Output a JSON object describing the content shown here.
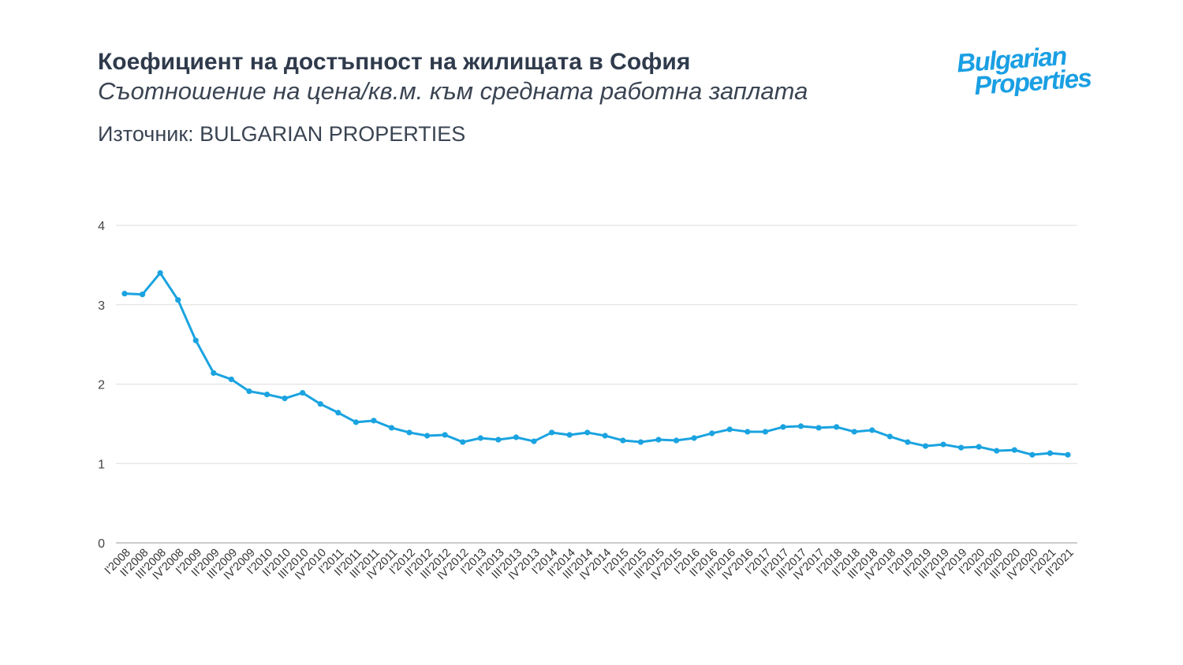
{
  "header": {
    "title": "Коефициент на достъпност на жилищата в София",
    "subtitle": "Съотношение на цена/кв.м. към средната работна заплата",
    "source": "Източник: BULGARIAN PROPERTIES"
  },
  "logo": {
    "line1": "Bulgarian",
    "line2": "Properties",
    "color": "#1a9fe3"
  },
  "chart_data": {
    "type": "line",
    "title": "",
    "xlabel": "",
    "ylabel": "",
    "ylim": [
      0,
      4
    ],
    "yticks": [
      0,
      1,
      2,
      3,
      4
    ],
    "grid": true,
    "line_color": "#1aa3e0",
    "categories": [
      "I'2008",
      "II'2008",
      "III'2008",
      "IV'2008",
      "I'2009",
      "II'2009",
      "III'2009",
      "IV'2009",
      "I'2010",
      "II'2010",
      "III'2010",
      "IV'2010",
      "I'2011",
      "II'2011",
      "III'2011",
      "IV'2011",
      "I'2012",
      "II'2012",
      "III'2012",
      "IV'2012",
      "I'2013",
      "II'2013",
      "III'2013",
      "IV'2013",
      "I'2014",
      "II'2014",
      "III'2014",
      "IV'2014",
      "I'2015",
      "II'2015",
      "III'2015",
      "IV'2015",
      "I'2016",
      "II'2016",
      "III'2016",
      "IV'2016",
      "I'2017",
      "II'2017",
      "III'2017",
      "IV'2017",
      "I'2018",
      "II'2018",
      "III'2018",
      "IV'2018",
      "I'2019",
      "II'2019",
      "III'2019",
      "IV'2019",
      "I'2020",
      "II'2020",
      "III'2020",
      "IV'2020",
      "I'2021",
      "II'2021"
    ],
    "values": [
      3.14,
      3.13,
      3.4,
      3.06,
      2.55,
      2.14,
      2.06,
      1.91,
      1.87,
      1.82,
      1.89,
      1.75,
      1.64,
      1.52,
      1.54,
      1.45,
      1.39,
      1.35,
      1.36,
      1.27,
      1.32,
      1.3,
      1.33,
      1.28,
      1.39,
      1.36,
      1.39,
      1.35,
      1.29,
      1.27,
      1.3,
      1.29,
      1.32,
      1.38,
      1.43,
      1.4,
      1.4,
      1.46,
      1.47,
      1.45,
      1.46,
      1.4,
      1.42,
      1.34,
      1.27,
      1.22,
      1.24,
      1.2,
      1.21,
      1.16,
      1.17,
      1.11,
      1.13,
      1.11
    ]
  }
}
